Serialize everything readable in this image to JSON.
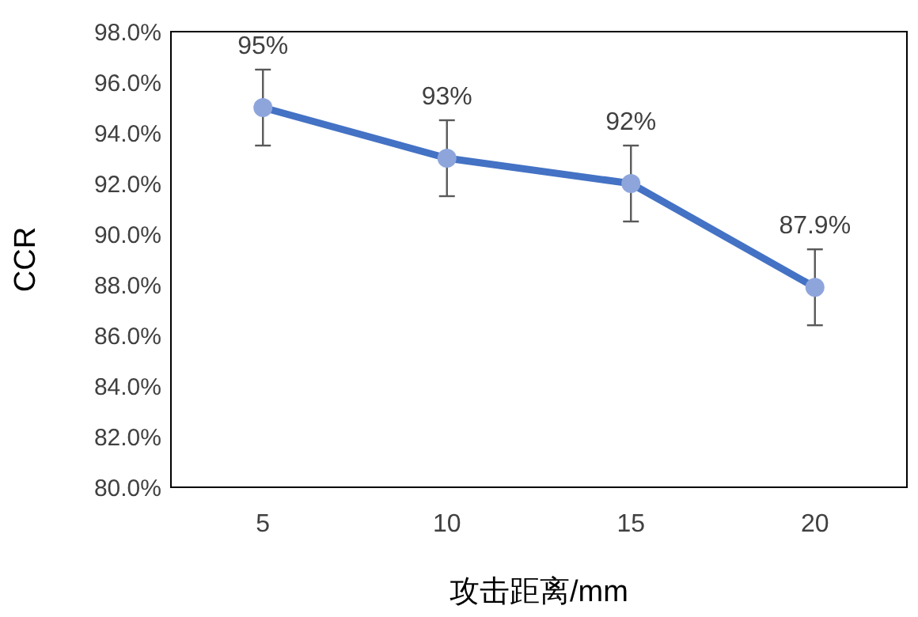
{
  "chart_data": {
    "type": "line",
    "xlabel": "攻击距离/mm",
    "ylabel": "CCR",
    "categories": [
      "5",
      "10",
      "15",
      "20"
    ],
    "series": [
      {
        "color": "#4472c4",
        "values": [
          95,
          93,
          92,
          87.9
        ],
        "errors": [
          1.5,
          1.5,
          1.5,
          1.5
        ],
        "value_labels": [
          "95%",
          "93%",
          "92%",
          "87.9%"
        ]
      }
    ],
    "ylim": [
      80,
      98
    ],
    "yticks": [
      {
        "value": 80,
        "label": "80.0%"
      },
      {
        "value": 82,
        "label": "82.0%"
      },
      {
        "value": 84,
        "label": "84.0%"
      },
      {
        "value": 86,
        "label": "86.0%"
      },
      {
        "value": 88,
        "label": "88.0%"
      },
      {
        "value": 90,
        "label": "90.0%"
      },
      {
        "value": 92,
        "label": "92.0%"
      },
      {
        "value": 94,
        "label": "94.0%"
      },
      {
        "value": 96,
        "label": "96.0%"
      },
      {
        "value": 98,
        "label": "98.0%"
      }
    ],
    "marker": "circle",
    "line_style": "solid",
    "grid": false
  }
}
